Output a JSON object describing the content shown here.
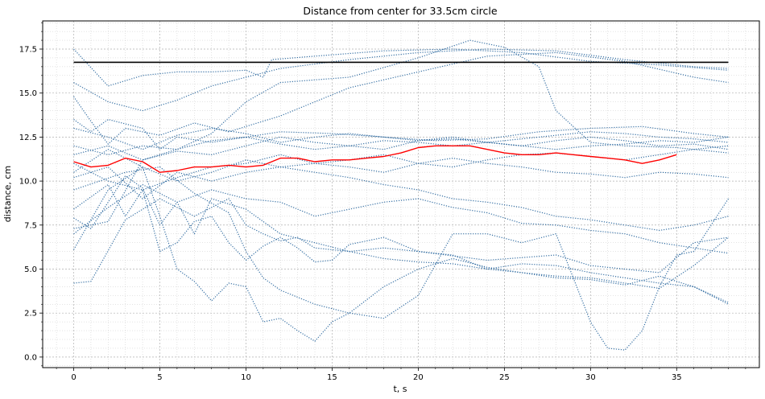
{
  "chart_data": {
    "type": "line",
    "title": "Distance from center for 33.5cm circle",
    "xlabel": "t, s",
    "ylabel": "distance, cm",
    "xlim": [
      -1.8,
      39.8
    ],
    "ylim": [
      -0.6,
      19.1
    ],
    "xticks": [
      0,
      5,
      10,
      15,
      20,
      25,
      30,
      35
    ],
    "xtick_labels": [
      "0",
      "5",
      "10",
      "15",
      "20",
      "25",
      "30",
      "35"
    ],
    "yticks": [
      0,
      2.5,
      5,
      7.5,
      10,
      12.5,
      15,
      17.5
    ],
    "ytick_labels": [
      "0.0",
      "2.5",
      "5.0",
      "7.5",
      "10.0",
      "12.5",
      "15.0",
      "17.5"
    ],
    "grid": true,
    "minor_grid": true,
    "colors": {
      "tracks": "#1f5f99",
      "mean": "#ff0000",
      "radius": "#000000",
      "grid": "#b0b0b0"
    },
    "radius_line": {
      "x": [
        0,
        38
      ],
      "y": [
        16.75,
        16.75
      ]
    },
    "mean_line": {
      "x": [
        0,
        1,
        2,
        3,
        4,
        5,
        6,
        7,
        8,
        9,
        10,
        11,
        12,
        13,
        14,
        15,
        16,
        17,
        18,
        19,
        20,
        21,
        22,
        23,
        24,
        25,
        26,
        27,
        28,
        29,
        30,
        31,
        32,
        33,
        34,
        35
      ],
      "y": [
        11.1,
        10.8,
        10.9,
        11.3,
        11.1,
        10.5,
        10.6,
        10.8,
        10.8,
        10.9,
        10.8,
        10.9,
        11.3,
        11.3,
        11.1,
        11.2,
        11.2,
        11.3,
        11.4,
        11.6,
        11.9,
        12.0,
        12.0,
        12.0,
        11.8,
        11.6,
        11.5,
        11.5,
        11.6,
        11.5,
        11.4,
        11.3,
        11.2,
        11.0,
        11.2,
        11.5
      ]
    },
    "series": [
      {
        "x": [
          0,
          2,
          4,
          6,
          8,
          10,
          11,
          11.5,
          14,
          18,
          22,
          26,
          30,
          34,
          38
        ],
        "y": [
          17.5,
          15.4,
          16.0,
          16.2,
          16.2,
          16.3,
          15.9,
          16.9,
          17.1,
          17.4,
          17.5,
          17.3,
          16.8,
          16.6,
          16.3
        ]
      },
      {
        "x": [
          0,
          2,
          4,
          6,
          8,
          10,
          12,
          16,
          20,
          24,
          28,
          32,
          36,
          38
        ],
        "y": [
          15.6,
          14.5,
          14.0,
          14.6,
          15.4,
          15.9,
          16.4,
          16.9,
          17.3,
          17.5,
          17.4,
          16.9,
          16.5,
          16.4
        ]
      },
      {
        "x": [
          0,
          1,
          2,
          3,
          5,
          7,
          9,
          12,
          16,
          20,
          24,
          28,
          32,
          36,
          38
        ],
        "y": [
          14.8,
          13.4,
          12.1,
          13.0,
          12.6,
          13.3,
          12.8,
          13.7,
          15.3,
          16.2,
          17.1,
          17.3,
          16.8,
          15.9,
          15.6
        ]
      },
      {
        "x": [
          0,
          2,
          4,
          6,
          8,
          10,
          12,
          16,
          20,
          23,
          25,
          27,
          28,
          30,
          32,
          35,
          38
        ],
        "y": [
          7.3,
          7.7,
          11.2,
          11.8,
          12.7,
          14.5,
          15.6,
          15.9,
          17.0,
          18.0,
          17.6,
          16.5,
          14.0,
          12.2,
          12.0,
          11.9,
          11.6
        ]
      },
      {
        "x": [
          0,
          1,
          2,
          4,
          5,
          6,
          8,
          10,
          12,
          15,
          18,
          21,
          24,
          27,
          30,
          33,
          36,
          38
        ],
        "y": [
          13.5,
          12.8,
          13.5,
          13.0,
          11.8,
          12.5,
          12.2,
          12.5,
          12.8,
          12.7,
          12.5,
          12.3,
          12.4,
          12.8,
          13.0,
          13.1,
          12.7,
          12.5
        ]
      },
      {
        "x": [
          0,
          2,
          4,
          6,
          8,
          10,
          12,
          14,
          16,
          18,
          20,
          22,
          24,
          26,
          28,
          30,
          32,
          34,
          36,
          38
        ],
        "y": [
          12.0,
          11.5,
          12.0,
          11.8,
          12.3,
          12.5,
          12.1,
          11.8,
          12.0,
          12.3,
          12.2,
          12.0,
          12.2,
          12.4,
          12.6,
          12.8,
          12.7,
          12.5,
          12.4,
          12.2
        ]
      },
      {
        "x": [
          0,
          2,
          4,
          6,
          8,
          10,
          12,
          14,
          16,
          18,
          20,
          22,
          24,
          26,
          28,
          30,
          32,
          34,
          36,
          38
        ],
        "y": [
          11.5,
          12.0,
          11.2,
          11.7,
          11.5,
          12.0,
          12.5,
          12.2,
          12.0,
          11.8,
          12.3,
          12.5,
          12.2,
          12.0,
          12.3,
          12.5,
          12.3,
          12.0,
          12.1,
          11.8
        ]
      },
      {
        "x": [
          0,
          2,
          4,
          6,
          8,
          10,
          12,
          14,
          16,
          18,
          20,
          22,
          24,
          26,
          28,
          30,
          32,
          34,
          36,
          38
        ],
        "y": [
          10.2,
          10.8,
          9.0,
          10.5,
          10.0,
          10.5,
          10.8,
          11.0,
          10.8,
          10.5,
          11.0,
          11.3,
          11.0,
          10.8,
          10.5,
          10.4,
          10.2,
          10.5,
          10.4,
          10.2
        ]
      },
      {
        "x": [
          0,
          2,
          4,
          6,
          8,
          10,
          12,
          14,
          16,
          18,
          20,
          22,
          24,
          26,
          28,
          30,
          32,
          34,
          36,
          38
        ],
        "y": [
          11.0,
          10.0,
          9.5,
          10.2,
          10.8,
          11.0,
          11.5,
          11.0,
          11.2,
          11.5,
          11.0,
          10.8,
          11.2,
          11.5,
          11.6,
          11.4,
          11.2,
          11.5,
          11.8,
          12.0
        ]
      },
      {
        "x": [
          0,
          1,
          3,
          4,
          5,
          6,
          7,
          8,
          10,
          12,
          14,
          16,
          18,
          20,
          24,
          28,
          30,
          32,
          34,
          36,
          38
        ],
        "y": [
          7.9,
          7.3,
          10.3,
          9.6,
          7.5,
          8.8,
          7.0,
          9.0,
          8.4,
          7.0,
          6.5,
          6.0,
          6.2,
          6.0,
          5.5,
          5.8,
          5.2,
          5.0,
          4.8,
          6.5,
          6.8
        ]
      },
      {
        "x": [
          0,
          2,
          3,
          4,
          5,
          6,
          7,
          8,
          9,
          10,
          11,
          12,
          13,
          14,
          15,
          16,
          18,
          20,
          22,
          24,
          26,
          28,
          30,
          32,
          34,
          36,
          38
        ],
        "y": [
          8.4,
          9.8,
          8.0,
          9.5,
          6.0,
          6.5,
          7.7,
          8.0,
          6.5,
          5.5,
          6.3,
          6.8,
          6.2,
          5.4,
          5.5,
          6.4,
          6.8,
          6.0,
          5.8,
          5.0,
          5.3,
          5.2,
          4.8,
          4.5,
          4.2,
          4.0,
          3.1
        ]
      },
      {
        "x": [
          0,
          1,
          3,
          5,
          6,
          7,
          8,
          9,
          10,
          11,
          12,
          13,
          14,
          16,
          18,
          20,
          22,
          24,
          26,
          28,
          30,
          32,
          34,
          36,
          38
        ],
        "y": [
          4.2,
          4.3,
          7.8,
          9.0,
          8.5,
          8.0,
          8.5,
          9.0,
          7.5,
          7.0,
          6.6,
          6.8,
          6.2,
          6.0,
          5.6,
          5.4,
          5.3,
          5.0,
          4.8,
          4.5,
          4.4,
          4.1,
          4.6,
          4.0,
          3.0
        ]
      },
      {
        "x": [
          0,
          2,
          4,
          5,
          6,
          7,
          8,
          9,
          10,
          11,
          12,
          13,
          14,
          15,
          16,
          18,
          20,
          22,
          24,
          26,
          28,
          30,
          32,
          34,
          36,
          38
        ],
        "y": [
          6.1,
          9.5,
          10.8,
          8.0,
          5.0,
          4.3,
          3.2,
          4.2,
          4.0,
          2.0,
          2.2,
          1.5,
          0.9,
          2.0,
          2.5,
          4.0,
          5.0,
          5.6,
          5.1,
          4.8,
          4.6,
          4.5,
          4.2,
          3.9,
          5.2,
          6.8
        ]
      },
      {
        "x": [
          0,
          3,
          5,
          7,
          9,
          10,
          11,
          12,
          14,
          16,
          18,
          20,
          22,
          24,
          26,
          28,
          29,
          30,
          31,
          32,
          33,
          34,
          35,
          36,
          37,
          38
        ],
        "y": [
          9.5,
          10.5,
          10.8,
          9.3,
          8.2,
          6.0,
          4.5,
          3.8,
          3.0,
          2.5,
          2.2,
          3.5,
          7.0,
          7.0,
          6.5,
          7.0,
          4.5,
          2.0,
          0.5,
          0.4,
          1.5,
          4.0,
          5.8,
          6.0,
          7.5,
          9.0
        ]
      },
      {
        "x": [
          0,
          2,
          4,
          6,
          8,
          10,
          12,
          14,
          16,
          18,
          20,
          22,
          24,
          26,
          28,
          30,
          32,
          34,
          36,
          38
        ],
        "y": [
          7.0,
          8.5,
          9.8,
          8.8,
          9.5,
          9.0,
          8.8,
          8.0,
          8.4,
          8.8,
          9.0,
          8.5,
          8.2,
          7.6,
          7.5,
          7.2,
          7.0,
          6.5,
          6.2,
          5.9
        ]
      },
      {
        "x": [
          0,
          2,
          4,
          6,
          8,
          10,
          12,
          14,
          16,
          18,
          20,
          22,
          24,
          26,
          28,
          30,
          32,
          34,
          36,
          38
        ],
        "y": [
          13.0,
          12.5,
          11.8,
          12.6,
          13.0,
          12.7,
          12.2,
          12.5,
          12.7,
          12.5,
          12.3,
          12.4,
          12.2,
          12.0,
          11.8,
          12.0,
          12.1,
          12.3,
          12.2,
          12.5
        ]
      },
      {
        "x": [
          0,
          2,
          4,
          6,
          8,
          10,
          12,
          14,
          16,
          18,
          20,
          22,
          24,
          26,
          28,
          30,
          32,
          34,
          36,
          38
        ],
        "y": [
          10.5,
          11.8,
          10.8,
          10.0,
          10.5,
          11.2,
          10.8,
          10.5,
          10.2,
          9.8,
          9.5,
          9.0,
          8.8,
          8.5,
          8.0,
          7.8,
          7.5,
          7.2,
          7.5,
          8.0
        ]
      }
    ]
  }
}
